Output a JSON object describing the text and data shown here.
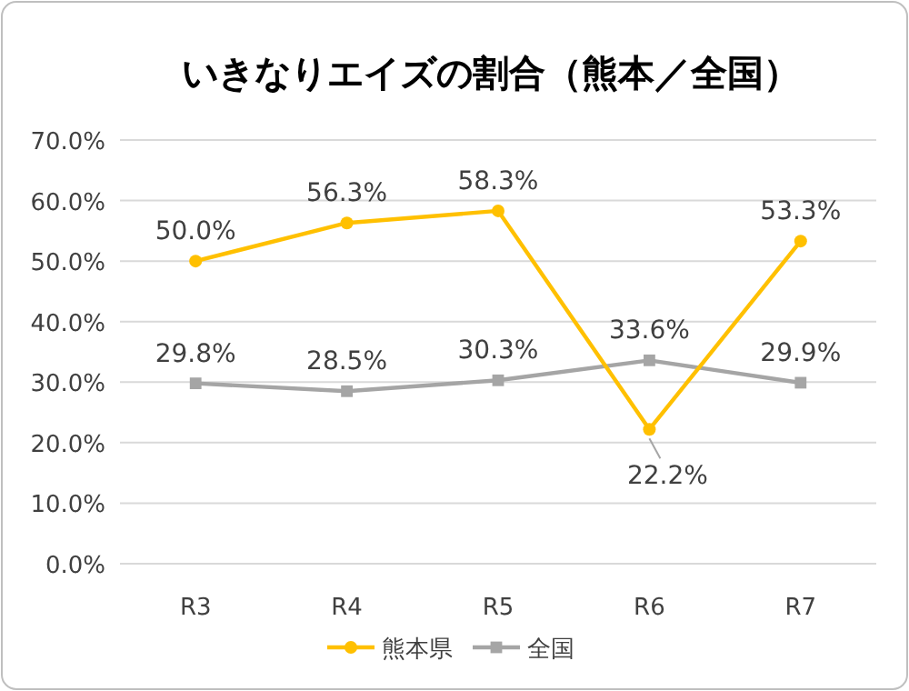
{
  "chart_data": {
    "type": "line",
    "title": "いきなりエイズの割合（熊本／全国）",
    "categories": [
      "R3",
      "R4",
      "R5",
      "R6",
      "R7"
    ],
    "series": [
      {
        "name": "熊本県",
        "color": "#ffc000",
        "marker": "circle",
        "values": [
          50.0,
          56.3,
          58.3,
          22.2,
          53.3
        ],
        "value_labels": [
          "50.0%",
          "56.3%",
          "58.3%",
          "22.2%",
          "53.3%"
        ]
      },
      {
        "name": "全国",
        "color": "#a5a5a5",
        "marker": "square",
        "values": [
          29.8,
          28.5,
          30.3,
          33.6,
          29.9
        ],
        "value_labels": [
          "29.8%",
          "28.5%",
          "30.3%",
          "33.6%",
          "29.9%"
        ]
      }
    ],
    "ylim": [
      0,
      70
    ],
    "yticks": [
      {
        "value": 0,
        "label": "0.0%"
      },
      {
        "value": 10,
        "label": "10.0%"
      },
      {
        "value": 20,
        "label": "20.0%"
      },
      {
        "value": 30,
        "label": "30.0%"
      },
      {
        "value": 40,
        "label": "40.0%"
      },
      {
        "value": 50,
        "label": "50.0%"
      },
      {
        "value": 60,
        "label": "60.0%"
      },
      {
        "value": 70,
        "label": "70.0%"
      }
    ],
    "grid": "y",
    "legend": "bottom"
  }
}
